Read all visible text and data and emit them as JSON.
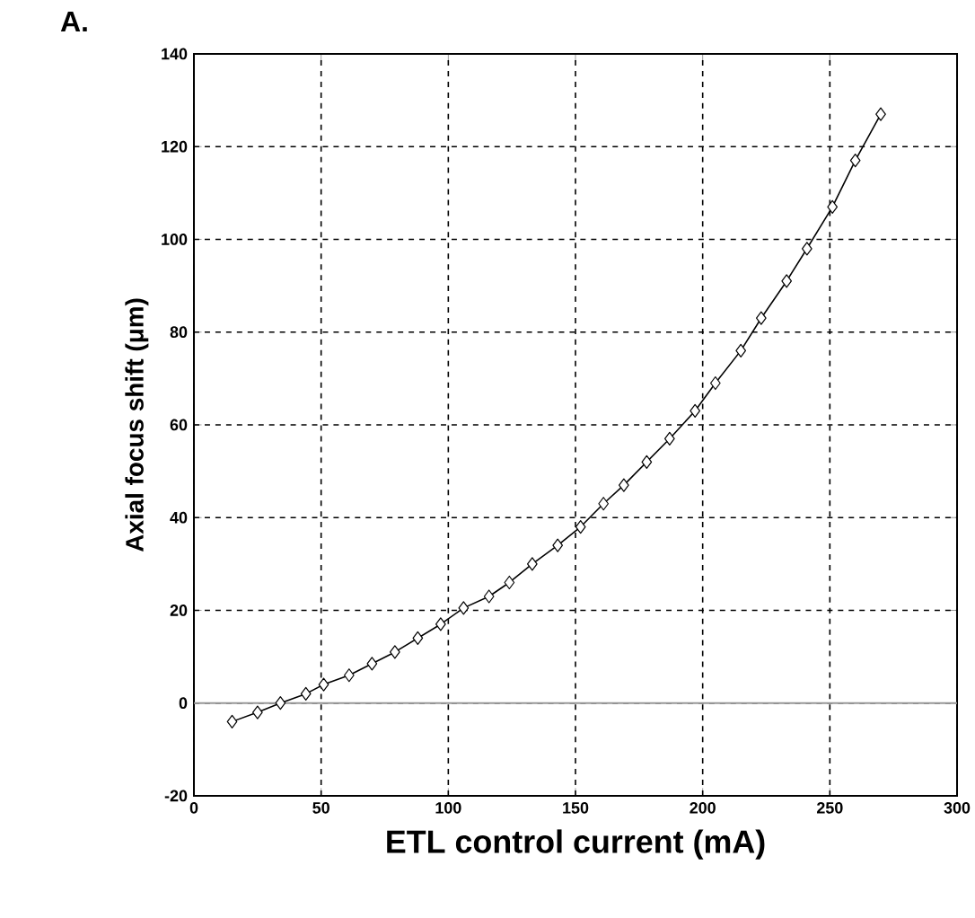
{
  "chart_data": {
    "type": "line",
    "xlabel": "ETL control current (mA)",
    "ylabel": "Axial focus shift (μm)",
    "annotations": [
      "A."
    ],
    "series": [
      {
        "color": "#000000",
        "marker": "diamond",
        "x": [
          15,
          25,
          34,
          44,
          51,
          61,
          70,
          79,
          88,
          97,
          106,
          116,
          124,
          133,
          143,
          152,
          161,
          169,
          178,
          187,
          197,
          205,
          215,
          223,
          233,
          241,
          251,
          260,
          270
        ],
        "values": [
          -4,
          -2,
          0,
          2,
          4,
          6,
          8.5,
          11,
          14,
          17,
          20.5,
          23,
          26,
          30,
          34,
          38,
          43,
          47,
          52,
          57,
          63,
          69,
          76,
          83,
          91,
          98,
          107,
          117,
          127
        ]
      }
    ],
    "xlim": [
      0,
      300
    ],
    "xticks": [
      0,
      50,
      100,
      150,
      200,
      250,
      300
    ],
    "ylim": [
      -20,
      140
    ],
    "yticks": [
      -20,
      0,
      20,
      40,
      60,
      80,
      100,
      120,
      140
    ],
    "grid": true,
    "ref_lines": [
      {
        "axis": "y",
        "value": 0,
        "color": "#999999"
      }
    ]
  }
}
